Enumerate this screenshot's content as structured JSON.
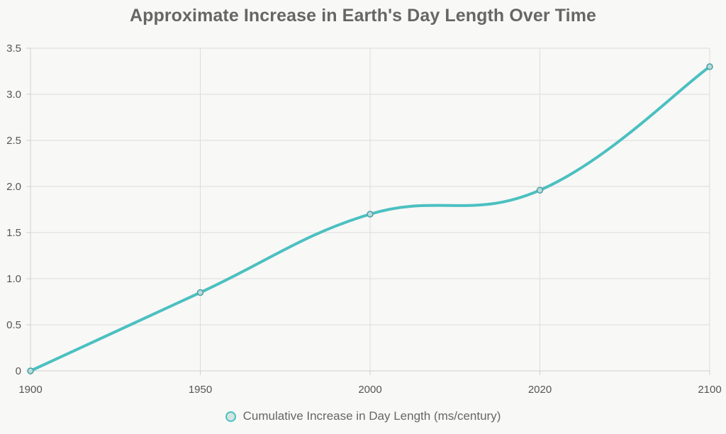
{
  "chart_data": {
    "type": "line",
    "title": "Approximate Increase in Earth's Day Length Over Time",
    "xlabel": "",
    "ylabel": "",
    "categories": [
      "1900",
      "1950",
      "2000",
      "2020",
      "2100"
    ],
    "series": [
      {
        "name": "Cumulative Increase in Day Length (ms/century)",
        "values": [
          0,
          0.85,
          1.7,
          1.96,
          3.3
        ],
        "color": "#4bc0c0"
      }
    ],
    "ylim": [
      0,
      3.5
    ],
    "yticks": [
      "0",
      "0.5",
      "1.0",
      "1.5",
      "2.0",
      "2.5",
      "3.0",
      "3.5"
    ],
    "grid": true,
    "legend": "bottom"
  }
}
